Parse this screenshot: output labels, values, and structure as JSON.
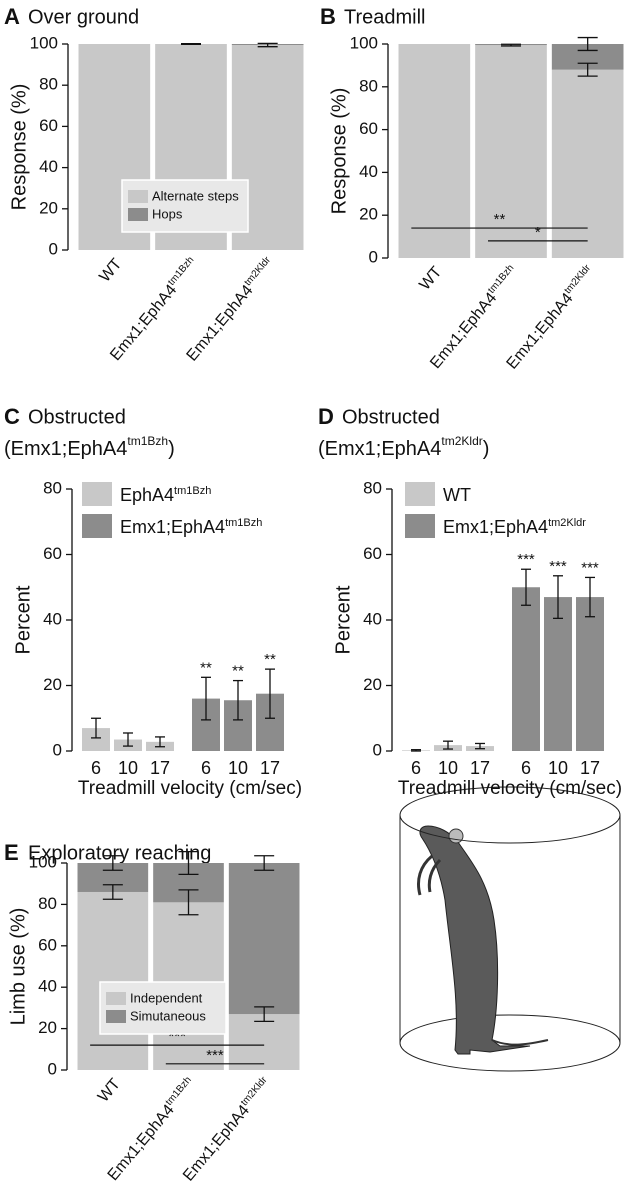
{
  "chart_data": [
    {
      "type": "bar",
      "panel": "A",
      "title": "Over ground",
      "y_label": "Response (%)",
      "stacked": true,
      "categories": [
        "WT",
        "Emx1;EphA4",
        "Emx1;EphA4"
      ],
      "category_superscripts": [
        null,
        "tm1Bzh",
        "tm2Kldr"
      ],
      "series": [
        {
          "name": "Alternate steps",
          "color": "#c8c8c8",
          "values": [
            100,
            100,
            99.5
          ],
          "errors": [
            null,
            0.2,
            0.8
          ]
        },
        {
          "name": "Hops",
          "color": "#8c8c8c",
          "values": [
            0,
            0,
            0.5
          ]
        }
      ],
      "ylim": [
        0,
        100
      ],
      "yticks": [
        0,
        20,
        40,
        60,
        80,
        100
      ],
      "legend": "center"
    },
    {
      "type": "bar",
      "panel": "B",
      "title": "Treadmill",
      "y_label": "Response (%)",
      "stacked": true,
      "categories": [
        "WT",
        "Emx1;EphA4",
        "Emx1;EphA4"
      ],
      "category_superscripts": [
        null,
        "tm1Bzh",
        "tm2Kldr"
      ],
      "series": [
        {
          "name": "Alternate steps",
          "color": "#c8c8c8",
          "values": [
            100,
            99.5,
            88
          ],
          "errors": [
            null,
            0.4,
            3
          ]
        },
        {
          "name": "Hops",
          "color": "#8c8c8c",
          "values": [
            0,
            0.5,
            12
          ],
          "errors": [
            null,
            null,
            3
          ]
        }
      ],
      "significance": [
        {
          "between": [
            0,
            2
          ],
          "y": 14,
          "label": "**"
        },
        {
          "between": [
            1,
            2
          ],
          "y": 8,
          "label": "*"
        }
      ],
      "ylim": [
        0,
        100
      ],
      "yticks": [
        0,
        20,
        40,
        60,
        80,
        100
      ]
    },
    {
      "type": "bar",
      "panel": "C",
      "title": "Obstructed",
      "subtitle": "(Emx1;EphA4",
      "subtitle_superscript": "tm1Bzh",
      "subtitle_end": ")",
      "x_label": "Treadmill velocity (cm/sec)",
      "y_label": "Percent",
      "categories": [
        "6",
        "10",
        "17"
      ],
      "series": [
        {
          "name": "EphA4",
          "name_superscript": "tm1Bzh",
          "color": "#c8c8c8",
          "values": [
            7,
            3.5,
            2.8
          ],
          "errors": [
            3,
            2,
            1.5
          ]
        },
        {
          "name": "Emx1;EphA4",
          "name_superscript": "tm1Bzh",
          "color": "#8c8c8c",
          "values": [
            16,
            15.5,
            17.5
          ],
          "errors": [
            6.5,
            6,
            7.5
          ],
          "significance": [
            "**",
            "**",
            "**"
          ]
        }
      ],
      "ylim": [
        0,
        80
      ],
      "yticks": [
        0,
        20,
        40,
        60,
        80
      ],
      "legend": "upper left"
    },
    {
      "type": "bar",
      "panel": "D",
      "title": "Obstructed",
      "subtitle": "(Emx1;EphA4",
      "subtitle_superscript": "tm2Kldr",
      "subtitle_end": ")",
      "x_label": "Treadmill velocity (cm/sec)",
      "y_label": "Percent",
      "categories": [
        "6",
        "10",
        "17"
      ],
      "series": [
        {
          "name": "WT",
          "color": "#c8c8c8",
          "values": [
            0.2,
            1.8,
            1.5
          ],
          "errors": [
            0.2,
            1.2,
            0.8
          ]
        },
        {
          "name": "Emx1;EphA4",
          "name_superscript": "tm2Kldr",
          "color": "#8c8c8c",
          "values": [
            50,
            47,
            47
          ],
          "errors": [
            5.5,
            6.5,
            6
          ],
          "significance": [
            "***",
            "***",
            "***"
          ]
        }
      ],
      "ylim": [
        0,
        80
      ],
      "yticks": [
        0,
        20,
        40,
        60,
        80
      ],
      "legend": "upper left"
    },
    {
      "type": "bar",
      "panel": "E",
      "title": "Exploratory reaching",
      "y_label": "Limb use (%)",
      "stacked": true,
      "categories": [
        "WT",
        "Emx1;EphA4",
        "Emx1;EphA4"
      ],
      "category_superscripts": [
        null,
        "tm1Bzh",
        "tm2Kldr"
      ],
      "series": [
        {
          "name": "Independent",
          "color": "#c8c8c8",
          "values": [
            86,
            81,
            27
          ],
          "errors": [
            3.5,
            6,
            3.5
          ]
        },
        {
          "name": "Simutaneous",
          "color": "#8c8c8c",
          "values": [
            14,
            19,
            73
          ],
          "errors": [
            3.5,
            5.5,
            3.5
          ]
        }
      ],
      "significance": [
        {
          "between": [
            0,
            2
          ],
          "y": 12,
          "label": "***"
        },
        {
          "between": [
            1,
            2
          ],
          "y": 3,
          "label": "***"
        }
      ],
      "ylim": [
        0,
        100
      ],
      "yticks": [
        0,
        20,
        40,
        60,
        80,
        100
      ],
      "legend": "lower left"
    }
  ]
}
